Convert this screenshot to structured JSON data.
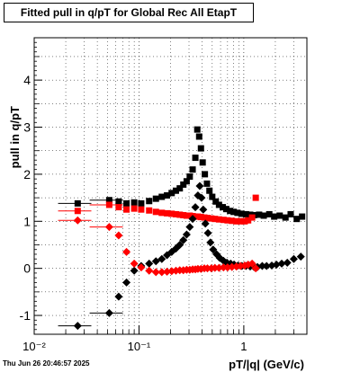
{
  "chart_data": {
    "type": "scatter",
    "title": "Fitted pull in q/pT for Global Rec All EtapT",
    "xlabel": "pT/|q| (GeV/c)",
    "ylabel": "pull in q/pT",
    "x_scale": "log",
    "xlim": [
      0.01,
      4.0
    ],
    "ylim": [
      -1.4,
      4.9
    ],
    "x_ticks": [
      0.01,
      0.1,
      1
    ],
    "x_tick_labels": [
      "10⁻²",
      "10⁻¹",
      "1"
    ],
    "y_ticks": [
      -1,
      0,
      1,
      2,
      3,
      4
    ],
    "grid": true,
    "series": [
      {
        "color": "#000000",
        "marker": "square",
        "points": [
          [
            0.026,
            1.38
          ],
          [
            0.052,
            1.45
          ],
          [
            0.064,
            1.42
          ],
          [
            0.076,
            1.38
          ],
          [
            0.09,
            1.4
          ],
          [
            0.105,
            1.38
          ],
          [
            0.125,
            1.43
          ],
          [
            0.145,
            1.48
          ],
          [
            0.165,
            1.52
          ],
          [
            0.185,
            1.55
          ],
          [
            0.205,
            1.6
          ],
          [
            0.225,
            1.65
          ],
          [
            0.245,
            1.7
          ],
          [
            0.265,
            1.78
          ],
          [
            0.285,
            1.85
          ],
          [
            0.305,
            1.95
          ],
          [
            0.325,
            2.1
          ],
          [
            0.345,
            2.35
          ],
          [
            0.36,
            2.95
          ],
          [
            0.375,
            2.8
          ],
          [
            0.39,
            2.55
          ],
          [
            0.405,
            2.25
          ],
          [
            0.425,
            2.0
          ],
          [
            0.445,
            1.8
          ],
          [
            0.47,
            1.65
          ],
          [
            0.5,
            1.52
          ],
          [
            0.54,
            1.42
          ],
          [
            0.58,
            1.35
          ],
          [
            0.63,
            1.3
          ],
          [
            0.68,
            1.26
          ],
          [
            0.74,
            1.22
          ],
          [
            0.8,
            1.2
          ],
          [
            0.87,
            1.18
          ],
          [
            0.95,
            1.16
          ],
          [
            1.05,
            1.15
          ],
          [
            1.15,
            1.14
          ],
          [
            1.25,
            1.13
          ],
          [
            1.4,
            1.14
          ],
          [
            1.55,
            1.12
          ],
          [
            1.75,
            1.15
          ],
          [
            1.95,
            1.1
          ],
          [
            2.2,
            1.12
          ],
          [
            2.5,
            1.08
          ],
          [
            2.8,
            1.15
          ],
          [
            3.2,
            1.05
          ],
          [
            3.6,
            1.1
          ]
        ]
      },
      {
        "color": "#ff0000",
        "marker": "square",
        "points": [
          [
            0.026,
            1.22
          ],
          [
            0.052,
            1.35
          ],
          [
            0.064,
            1.3
          ],
          [
            0.076,
            1.25
          ],
          [
            0.09,
            1.27
          ],
          [
            0.105,
            1.25
          ],
          [
            0.125,
            1.23
          ],
          [
            0.145,
            1.2
          ],
          [
            0.165,
            1.18
          ],
          [
            0.185,
            1.17
          ],
          [
            0.205,
            1.16
          ],
          [
            0.225,
            1.15
          ],
          [
            0.245,
            1.14
          ],
          [
            0.265,
            1.13
          ],
          [
            0.285,
            1.12
          ],
          [
            0.305,
            1.12
          ],
          [
            0.325,
            1.11
          ],
          [
            0.345,
            1.1
          ],
          [
            0.365,
            1.1
          ],
          [
            0.39,
            1.09
          ],
          [
            0.42,
            1.08
          ],
          [
            0.45,
            1.07
          ],
          [
            0.49,
            1.06
          ],
          [
            0.53,
            1.05
          ],
          [
            0.58,
            1.04
          ],
          [
            0.64,
            1.03
          ],
          [
            0.7,
            1.02
          ],
          [
            0.77,
            1.01
          ],
          [
            0.85,
            1.0
          ],
          [
            0.93,
            1.0
          ],
          [
            1.02,
            1.0
          ],
          [
            1.1,
            1.02
          ],
          [
            1.2,
            1.08
          ],
          [
            1.3,
            1.5
          ]
        ]
      },
      {
        "color": "#000000",
        "marker": "diamond",
        "points": [
          [
            0.026,
            -1.22
          ],
          [
            0.052,
            -0.95
          ],
          [
            0.064,
            -0.6
          ],
          [
            0.076,
            -0.3
          ],
          [
            0.09,
            -0.05
          ],
          [
            0.105,
            0.05
          ],
          [
            0.125,
            0.1
          ],
          [
            0.145,
            0.15
          ],
          [
            0.165,
            0.2
          ],
          [
            0.185,
            0.28
          ],
          [
            0.205,
            0.35
          ],
          [
            0.225,
            0.42
          ],
          [
            0.245,
            0.5
          ],
          [
            0.265,
            0.6
          ],
          [
            0.285,
            0.72
          ],
          [
            0.305,
            0.88
          ],
          [
            0.325,
            1.05
          ],
          [
            0.345,
            1.3
          ],
          [
            0.365,
            1.55
          ],
          [
            0.38,
            1.75
          ],
          [
            0.395,
            1.5
          ],
          [
            0.41,
            1.25
          ],
          [
            0.43,
            0.95
          ],
          [
            0.455,
            0.75
          ],
          [
            0.48,
            0.55
          ],
          [
            0.51,
            0.4
          ],
          [
            0.55,
            0.3
          ],
          [
            0.59,
            0.22
          ],
          [
            0.64,
            0.16
          ],
          [
            0.69,
            0.12
          ],
          [
            0.75,
            0.1
          ],
          [
            0.81,
            0.08
          ],
          [
            0.88,
            0.06
          ],
          [
            0.96,
            0.05
          ],
          [
            1.05,
            0.05
          ],
          [
            1.15,
            0.04
          ],
          [
            1.25,
            0.03
          ],
          [
            1.35,
            0.03
          ],
          [
            1.5,
            0.05
          ],
          [
            1.65,
            0.05
          ],
          [
            1.85,
            0.06
          ],
          [
            2.05,
            0.08
          ],
          [
            2.3,
            0.1
          ],
          [
            2.6,
            0.12
          ],
          [
            3.0,
            0.2
          ],
          [
            3.5,
            0.25
          ]
        ]
      },
      {
        "color": "#ff0000",
        "marker": "diamond",
        "points": [
          [
            0.026,
            1.02
          ],
          [
            0.052,
            0.88
          ],
          [
            0.064,
            0.7
          ],
          [
            0.076,
            0.35
          ],
          [
            0.09,
            0.1
          ],
          [
            0.105,
            0.02
          ],
          [
            0.125,
            -0.05
          ],
          [
            0.145,
            -0.08
          ],
          [
            0.165,
            -0.08
          ],
          [
            0.185,
            -0.07
          ],
          [
            0.205,
            -0.06
          ],
          [
            0.225,
            -0.05
          ],
          [
            0.245,
            -0.04
          ],
          [
            0.265,
            -0.04
          ],
          [
            0.285,
            -0.03
          ],
          [
            0.305,
            -0.03
          ],
          [
            0.325,
            -0.02
          ],
          [
            0.345,
            -0.02
          ],
          [
            0.365,
            -0.01
          ],
          [
            0.39,
            -0.01
          ],
          [
            0.42,
            0.0
          ],
          [
            0.45,
            0.0
          ],
          [
            0.49,
            0.0
          ],
          [
            0.53,
            0.01
          ],
          [
            0.58,
            0.01
          ],
          [
            0.64,
            0.02
          ],
          [
            0.7,
            0.02
          ],
          [
            0.77,
            0.03
          ],
          [
            0.85,
            0.04
          ],
          [
            0.93,
            0.05
          ],
          [
            1.02,
            0.06
          ],
          [
            1.1,
            0.08
          ],
          [
            1.2,
            0.1
          ],
          [
            1.3,
            0.0
          ]
        ]
      }
    ]
  },
  "datestamp": "Thu Jun 26 20:46:57 2025"
}
